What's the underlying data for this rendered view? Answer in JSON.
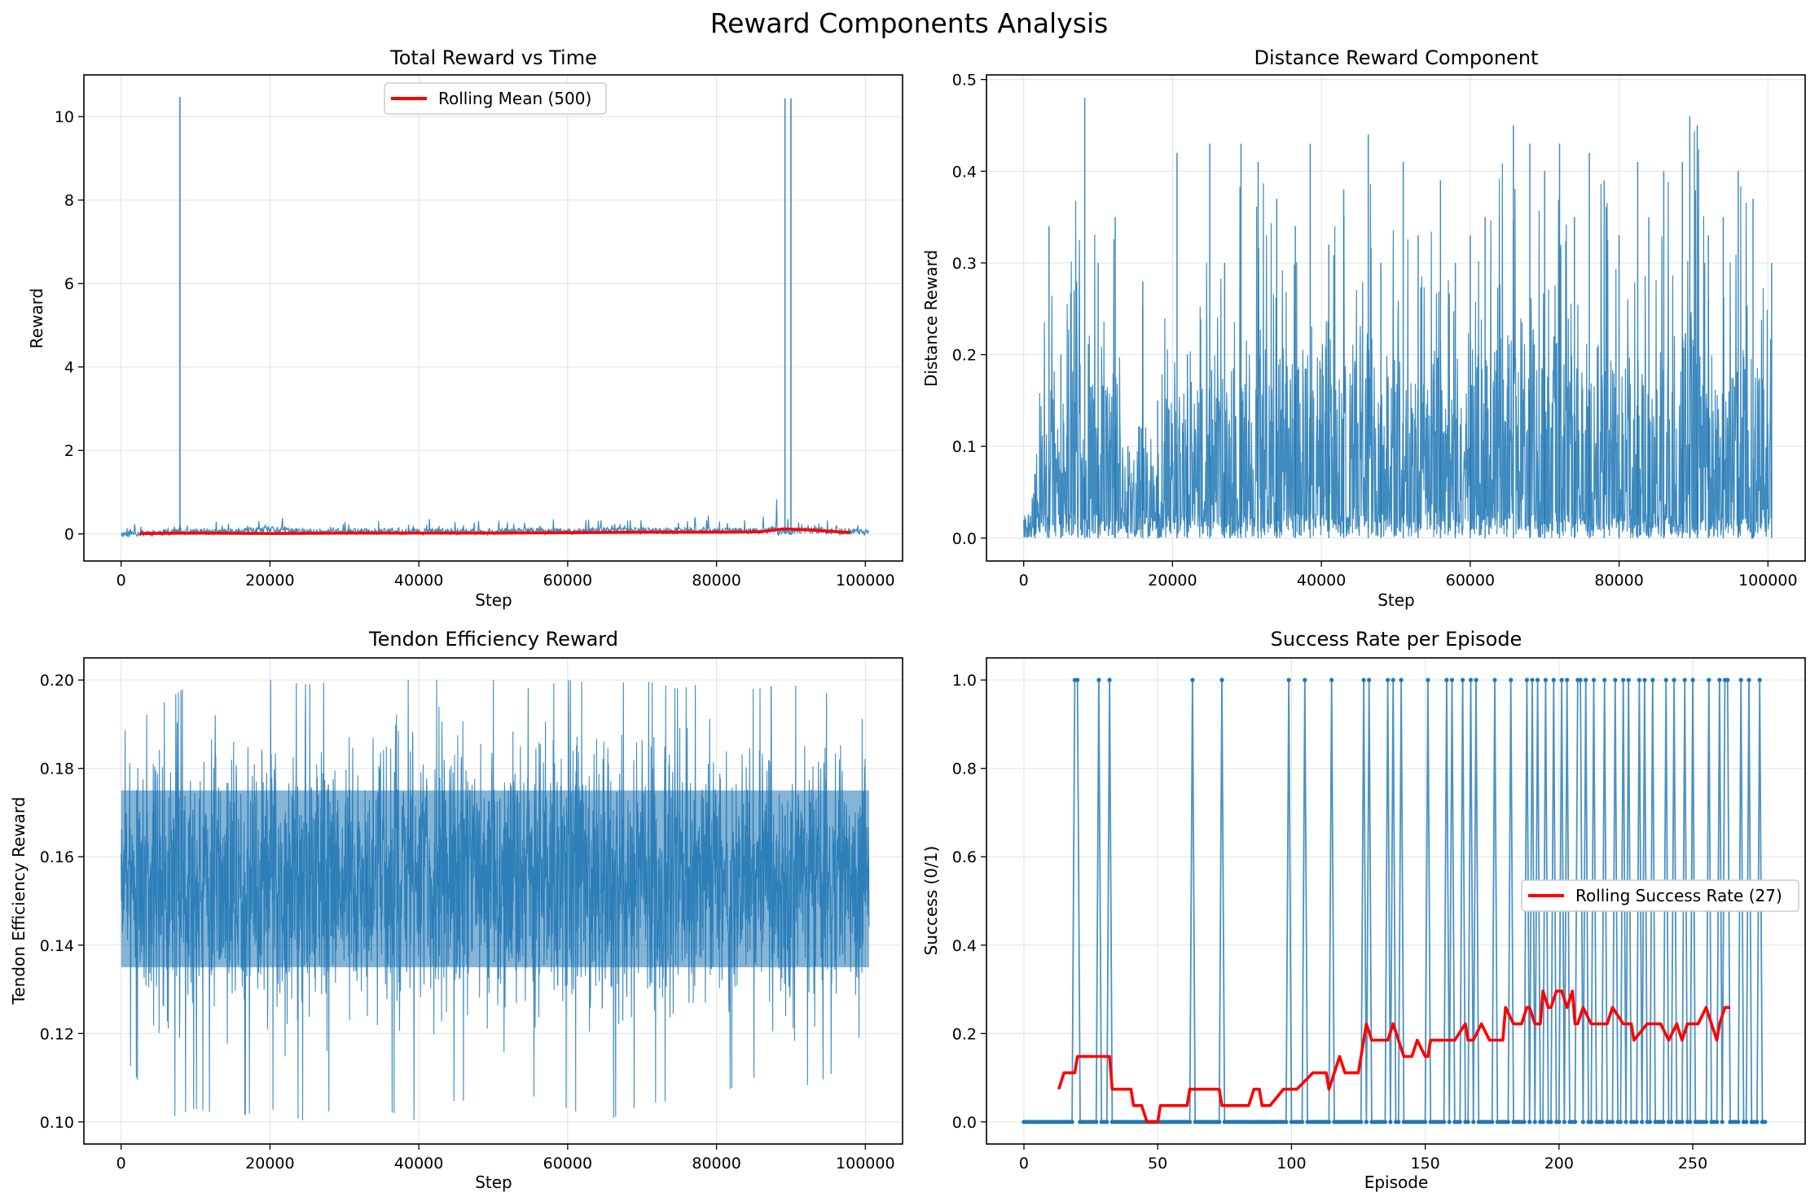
{
  "figure_title": "Reward Components Analysis",
  "colors": {
    "series": "#1f77b4",
    "rolling": "#ff0000",
    "grid": "#e5e5e5"
  },
  "chart_data": [
    {
      "id": "total",
      "type": "line",
      "title": "Total Reward vs Time",
      "xlabel": "Step",
      "ylabel": "Reward",
      "xlim": [
        -5000,
        105000
      ],
      "ylim": [
        -0.65,
        11.0
      ],
      "xticks": [
        0,
        20000,
        40000,
        60000,
        80000,
        100000
      ],
      "xtick_labels": [
        "0",
        "20000",
        "40000",
        "60000",
        "80000",
        "100000"
      ],
      "yticks": [
        0,
        2,
        4,
        6,
        8,
        10
      ],
      "ytick_labels": [
        "0",
        "2",
        "4",
        "6",
        "8",
        "10"
      ],
      "grid": true,
      "legend": {
        "position": "upper-center",
        "entries": [
          "Rolling Mean (500)"
        ]
      },
      "raw_series": {
        "x": [
          0,
          2500,
          5000,
          7400,
          7900,
          8400,
          12000,
          16000,
          20500,
          25000,
          30000,
          35000,
          40000,
          45000,
          50000,
          55000,
          60000,
          65000,
          70000,
          75000,
          80000,
          85000,
          88000,
          89200,
          89600,
          90000,
          90500,
          91000,
          95000,
          100500
        ],
        "y": [
          0.0,
          0.02,
          0.03,
          0.05,
          10.47,
          0.04,
          0.05,
          0.06,
          0.1,
          0.05,
          0.05,
          0.06,
          0.05,
          0.06,
          0.05,
          0.07,
          0.06,
          0.08,
          0.08,
          0.07,
          0.08,
          0.07,
          0.1,
          10.44,
          0.1,
          10.44,
          0.1,
          0.08,
          0.06,
          0.05
        ]
      },
      "series": [
        {
          "name": "Rolling Mean (500)",
          "x": [
            2500,
            10000,
            20000,
            30000,
            40000,
            50000,
            60000,
            70000,
            80000,
            86000,
            89000,
            92000,
            98000
          ],
          "y": [
            0.01,
            0.02,
            0.01,
            0.02,
            0.02,
            0.02,
            0.03,
            0.04,
            0.04,
            0.05,
            0.12,
            0.1,
            0.03
          ]
        }
      ]
    },
    {
      "id": "distance",
      "type": "line",
      "title": "Distance Reward Component",
      "xlabel": "Step",
      "ylabel": "Distance Reward",
      "xlim": [
        -5000,
        105000
      ],
      "ylim": [
        -0.025,
        0.505
      ],
      "xticks": [
        0,
        20000,
        40000,
        60000,
        80000,
        100000
      ],
      "xtick_labels": [
        "0",
        "20000",
        "40000",
        "60000",
        "80000",
        "100000"
      ],
      "yticks": [
        0.0,
        0.1,
        0.2,
        0.3,
        0.4,
        0.5
      ],
      "ytick_labels": [
        "0.0",
        "0.1",
        "0.2",
        "0.3",
        "0.4",
        "0.5"
      ],
      "grid": true,
      "series": [
        {
          "name": "",
          "x": [
            0,
            1500,
            3400,
            5000,
            8200,
            10000,
            12300,
            14000,
            16000,
            18000,
            20600,
            22000,
            25000,
            27000,
            29200,
            31500,
            34000,
            36500,
            38500,
            41000,
            43000,
            46300,
            48000,
            51000,
            53000,
            56000,
            58000,
            60000,
            62000,
            65800,
            68000,
            70000,
            72000,
            74000,
            76000,
            78000,
            80000,
            82500,
            84000,
            86000,
            88500,
            89500,
            90500,
            92000,
            94000,
            96000,
            98000,
            100500
          ],
          "y": [
            0.0,
            0.07,
            0.34,
            0.2,
            0.48,
            0.3,
            0.35,
            0.1,
            0.28,
            0.15,
            0.42,
            0.2,
            0.43,
            0.3,
            0.43,
            0.41,
            0.37,
            0.34,
            0.43,
            0.32,
            0.38,
            0.44,
            0.3,
            0.41,
            0.33,
            0.39,
            0.3,
            0.33,
            0.35,
            0.45,
            0.43,
            0.4,
            0.43,
            0.35,
            0.42,
            0.39,
            0.33,
            0.41,
            0.35,
            0.4,
            0.41,
            0.46,
            0.45,
            0.33,
            0.35,
            0.4,
            0.37,
            0.3
          ]
        }
      ]
    },
    {
      "id": "tendon",
      "type": "line",
      "title": "Tendon Efficiency Reward",
      "xlabel": "Step",
      "ylabel": "Tendon Efficiency Reward",
      "xlim": [
        -5000,
        105000
      ],
      "ylim": [
        0.095,
        0.205
      ],
      "xticks": [
        0,
        20000,
        40000,
        60000,
        80000,
        100000
      ],
      "xtick_labels": [
        "0",
        "20000",
        "40000",
        "60000",
        "80000",
        "100000"
      ],
      "yticks": [
        0.1,
        0.12,
        0.14,
        0.16,
        0.18,
        0.2
      ],
      "ytick_labels": [
        "0.10",
        "0.12",
        "0.14",
        "0.16",
        "0.18",
        "0.20"
      ],
      "grid": true,
      "series": [
        {
          "name": "",
          "x": [
            0,
            5000,
            10000,
            15000,
            20000,
            25000,
            30000,
            35000,
            40000,
            45000,
            50000,
            55000,
            60000,
            65000,
            70000,
            75000,
            80000,
            85000,
            90000,
            95000,
            100500
          ],
          "y_low": [
            0.117,
            0.1,
            0.103,
            0.101,
            0.103,
            0.1,
            0.104,
            0.103,
            0.1,
            0.105,
            0.104,
            0.106,
            0.103,
            0.1,
            0.104,
            0.105,
            0.106,
            0.11,
            0.107,
            0.11,
            0.122
          ],
          "y_high": [
            0.188,
            0.194,
            0.2,
            0.198,
            0.2,
            0.199,
            0.2,
            0.2,
            0.2,
            0.2,
            0.2,
            0.198,
            0.2,
            0.199,
            0.2,
            0.198,
            0.2,
            0.198,
            0.199,
            0.197,
            0.19
          ]
        }
      ]
    },
    {
      "id": "success",
      "type": "line",
      "title": "Success Rate per Episode",
      "xlabel": "Episode",
      "ylabel": "Success (0/1)",
      "xlim": [
        -14,
        292
      ],
      "ylim": [
        -0.05,
        1.05
      ],
      "xticks": [
        0,
        50,
        100,
        150,
        200,
        250
      ],
      "xtick_labels": [
        "0",
        "50",
        "100",
        "150",
        "200",
        "250"
      ],
      "yticks": [
        0.0,
        0.2,
        0.4,
        0.6,
        0.8,
        1.0
      ],
      "ytick_labels": [
        "0.0",
        "0.2",
        "0.4",
        "0.6",
        "0.8",
        "1.0"
      ],
      "grid": true,
      "legend": {
        "position": "center-right",
        "entries": [
          "Rolling Success Rate (27)"
        ]
      },
      "episodes": 278,
      "success_episodes": [
        19,
        20,
        28,
        32,
        63,
        74,
        99,
        105,
        115,
        127,
        129,
        136,
        138,
        141,
        151,
        158,
        160,
        164,
        167,
        169,
        176,
        182,
        188,
        190,
        192,
        195,
        198,
        201,
        203,
        207,
        208,
        210,
        213,
        217,
        221,
        224,
        226,
        230,
        232,
        235,
        240,
        243,
        247,
        250,
        256,
        260,
        262,
        263,
        268,
        271,
        275
      ],
      "series": [
        {
          "name": "Rolling Success Rate (27)",
          "x": [
            13,
            15,
            19,
            20,
            32,
            33,
            40,
            41,
            44,
            46,
            47,
            48,
            50,
            51,
            61,
            62,
            73,
            74,
            84,
            86,
            88,
            89,
            92,
            97,
            102,
            108,
            113,
            114,
            116,
            118,
            120,
            125,
            127,
            128,
            130,
            132,
            136,
            138,
            140,
            142,
            145,
            147,
            150,
            151,
            152,
            154,
            157,
            161,
            165,
            166,
            168,
            171,
            174,
            179,
            180,
            183,
            186,
            188,
            189,
            191,
            193,
            194,
            196,
            197,
            199,
            201,
            203,
            205,
            206,
            207,
            209,
            212,
            218,
            220,
            224,
            227,
            228,
            233,
            236,
            238,
            241,
            244,
            246,
            248,
            250,
            252,
            255,
            257,
            259,
            260,
            262,
            264
          ],
          "y": [
            0.074,
            0.111,
            0.111,
            0.148,
            0.148,
            0.074,
            0.074,
            0.037,
            0.037,
            0.0,
            0.0,
            0.0,
            0.0,
            0.037,
            0.037,
            0.074,
            0.074,
            0.037,
            0.037,
            0.074,
            0.074,
            0.037,
            0.037,
            0.074,
            0.074,
            0.111,
            0.111,
            0.074,
            0.111,
            0.148,
            0.111,
            0.111,
            0.185,
            0.222,
            0.185,
            0.185,
            0.185,
            0.222,
            0.185,
            0.148,
            0.148,
            0.185,
            0.148,
            0.148,
            0.185,
            0.185,
            0.185,
            0.185,
            0.222,
            0.185,
            0.185,
            0.222,
            0.185,
            0.185,
            0.259,
            0.222,
            0.222,
            0.259,
            0.259,
            0.222,
            0.222,
            0.296,
            0.259,
            0.259,
            0.296,
            0.296,
            0.259,
            0.296,
            0.222,
            0.222,
            0.259,
            0.222,
            0.222,
            0.259,
            0.222,
            0.222,
            0.185,
            0.222,
            0.222,
            0.222,
            0.185,
            0.222,
            0.185,
            0.222,
            0.222,
            0.222,
            0.259,
            0.222,
            0.185,
            0.222,
            0.259,
            0.259
          ]
        }
      ]
    }
  ]
}
